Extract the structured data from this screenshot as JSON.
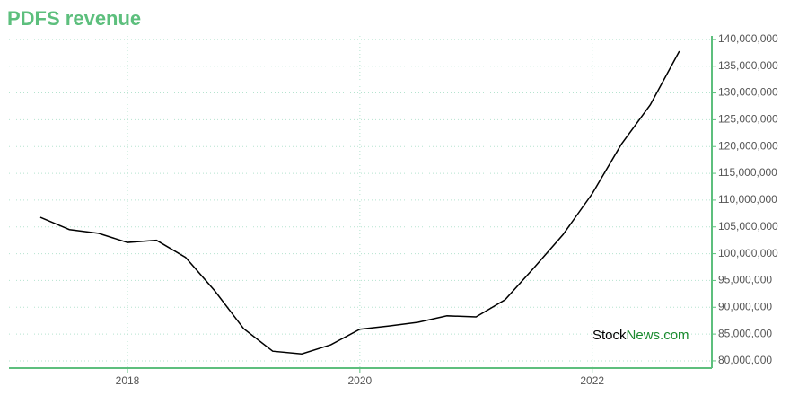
{
  "chart_data": {
    "type": "line",
    "title": "PDFS revenue",
    "x": [
      2017.25,
      2017.5,
      2017.75,
      2018,
      2018.25,
      2018.5,
      2018.75,
      2019,
      2019.25,
      2019.5,
      2019.75,
      2020,
      2020.25,
      2020.5,
      2020.75,
      2021,
      2021.25,
      2021.5,
      2021.75,
      2022,
      2022.25,
      2022.5,
      2022.75
    ],
    "series": [
      {
        "color": "#000000",
        "values": [
          106800000,
          104500000,
          103800000,
          102100000,
          102500000,
          99300000,
          93100000,
          86000000,
          81800000,
          81300000,
          83000000,
          85900000,
          86500000,
          87200000,
          88400000,
          88200000,
          91400000,
          97400000,
          103600000,
          111200000,
          120400000,
          127800000,
          137800000
        ]
      }
    ],
    "xlim": [
      2016.98,
      2023.03
    ],
    "xticks": [
      2018,
      2020,
      2022
    ],
    "ylim": [
      78650000,
      140650000
    ],
    "yticks": [
      {
        "value": 80000000,
        "label": "80,000,000"
      },
      {
        "value": 85000000,
        "label": "85,000,000"
      },
      {
        "value": 90000000,
        "label": "90,000,000"
      },
      {
        "value": 95000000,
        "label": "95,000,000"
      },
      {
        "value": 100000000,
        "label": "100,000,000"
      },
      {
        "value": 105000000,
        "label": "105,000,000"
      },
      {
        "value": 110000000,
        "label": "110,000,000"
      },
      {
        "value": 115000000,
        "label": "115,000,000"
      },
      {
        "value": 120000000,
        "label": "120,000,000"
      },
      {
        "value": 125000000,
        "label": "125,000,000"
      },
      {
        "value": 130000000,
        "label": "130,000,000"
      },
      {
        "value": 135000000,
        "label": "135,000,000"
      },
      {
        "value": 140000000,
        "label": "140,000,000"
      }
    ],
    "grid": true,
    "axis_color": "#5dbf7d",
    "grid_color": "#b5e3cf",
    "watermark": [
      "Stock",
      "News.com"
    ]
  }
}
